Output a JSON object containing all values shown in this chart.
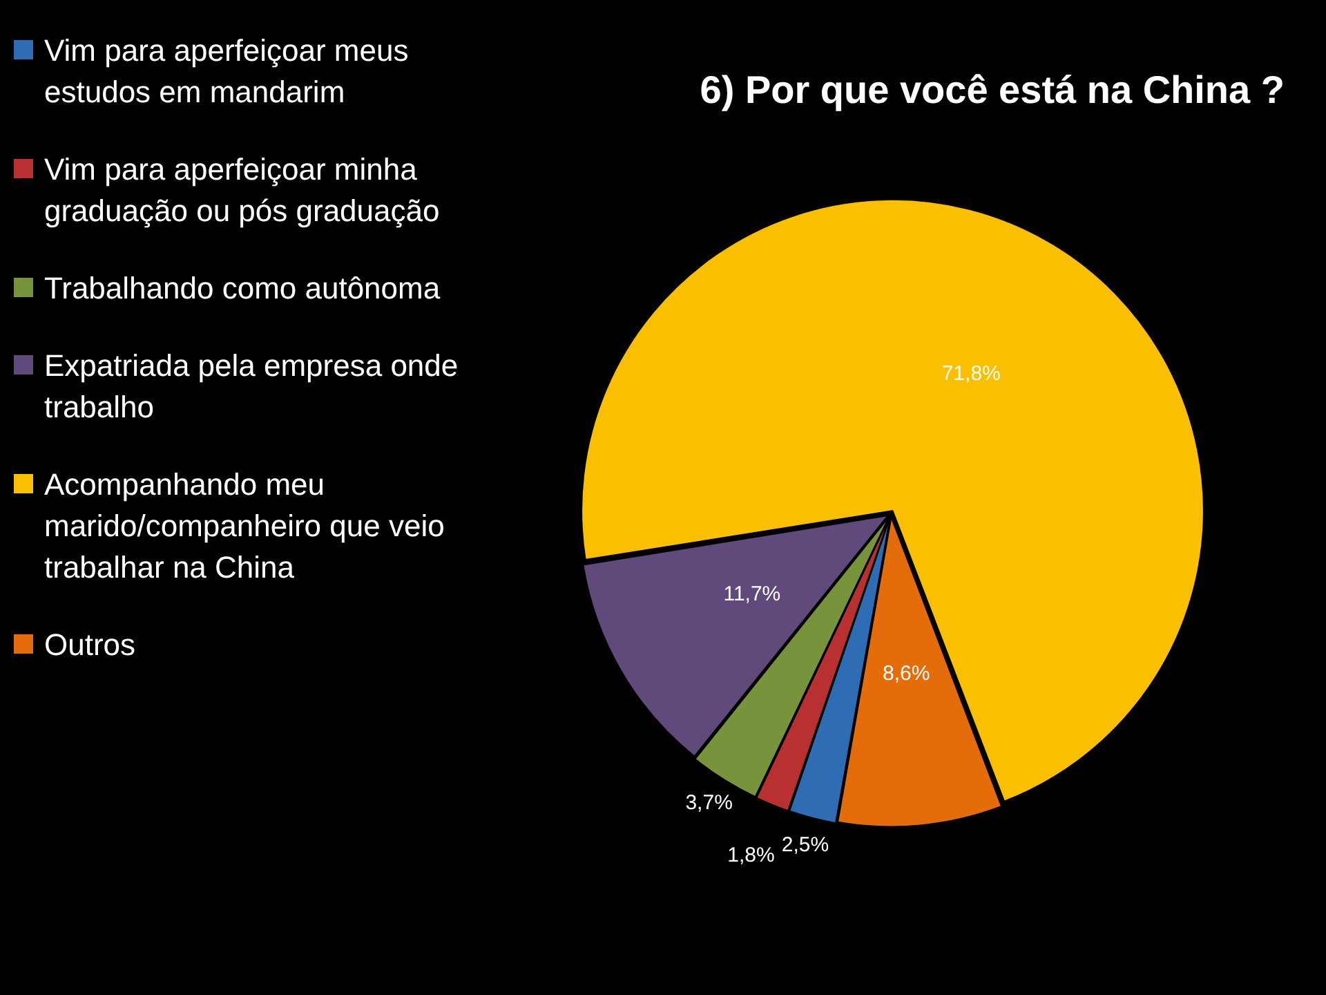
{
  "chart_data": {
    "type": "pie",
    "title": "6) Por que você está na China ?",
    "categories": [
      "Vim para aperfeiçoar meus estudos em mandarim",
      "Vim para aperfeiçoar minha graduação ou pós graduação",
      "Trabalhando como autônoma",
      "Expatriada pela empresa onde trabalho",
      "Acompanhando meu marido/companheiro que veio trabalhar na China",
      "Outros"
    ],
    "values": [
      2.5,
      1.8,
      3.7,
      11.7,
      71.8,
      8.6
    ],
    "value_labels": [
      "2,5%",
      "1,8%",
      "3,7%",
      "11,7%",
      "71,8%",
      "8,6%"
    ],
    "colors": [
      "#2e6db4",
      "#b8302f",
      "#77933c",
      "#604a7b",
      "#fac000",
      "#e46c0a"
    ],
    "legend": "left"
  }
}
